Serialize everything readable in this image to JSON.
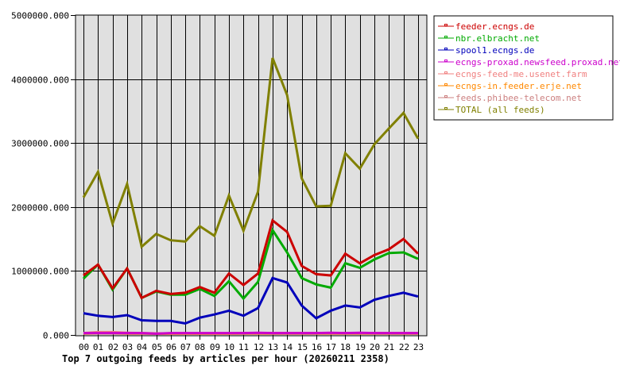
{
  "chart_data": {
    "type": "line",
    "title": "Top 7 outgoing feeds by articles per hour (20260211 2358)",
    "xlabel": "",
    "ylabel": "",
    "ylim": [
      0,
      5000000
    ],
    "yticks": [
      "0.000",
      "1000000.000",
      "2000000.000",
      "3000000.000",
      "4000000.000",
      "5000000.000"
    ],
    "grid": true,
    "legend_position": "right",
    "categories": [
      "00",
      "01",
      "02",
      "03",
      "04",
      "05",
      "06",
      "07",
      "08",
      "09",
      "10",
      "11",
      "12",
      "13",
      "14",
      "15",
      "16",
      "17",
      "18",
      "19",
      "20",
      "21",
      "22",
      "23"
    ],
    "series": [
      {
        "name": "feeder.ecngs.de",
        "color": "#cc0000",
        "values": [
          930000,
          1100000,
          730000,
          1040000,
          580000,
          690000,
          640000,
          660000,
          750000,
          660000,
          960000,
          780000,
          960000,
          1790000,
          1610000,
          1080000,
          950000,
          930000,
          1270000,
          1120000,
          1250000,
          1340000,
          1500000,
          1270000
        ]
      },
      {
        "name": "nbr.elbracht.net",
        "color": "#00aa00",
        "values": [
          880000,
          1100000,
          710000,
          1040000,
          580000,
          680000,
          630000,
          630000,
          720000,
          610000,
          840000,
          570000,
          830000,
          1640000,
          1290000,
          890000,
          790000,
          740000,
          1120000,
          1050000,
          1180000,
          1280000,
          1290000,
          1190000
        ]
      },
      {
        "name": "spool1.ecngs.de",
        "color": "#0000bb",
        "values": [
          340000,
          300000,
          280000,
          310000,
          230000,
          220000,
          220000,
          180000,
          270000,
          320000,
          380000,
          300000,
          420000,
          890000,
          820000,
          460000,
          260000,
          380000,
          460000,
          430000,
          550000,
          610000,
          660000,
          600000
        ]
      },
      {
        "name": "ecngs-proxad.newsfeed.proxad.net",
        "color": "#cc00cc",
        "values": [
          30000,
          30000,
          30000,
          30000,
          30000,
          20000,
          30000,
          30000,
          30000,
          30000,
          30000,
          30000,
          35000,
          30000,
          30000,
          30000,
          30000,
          35000,
          30000,
          35000,
          30000,
          30000,
          30000,
          30000
        ]
      },
      {
        "name": "ecngs-feed-me.usenet.farm",
        "color": "#f08080",
        "values": [
          30000,
          45000,
          45000,
          35000,
          30000,
          25000,
          25000,
          25000,
          25000,
          25000,
          25000,
          30000,
          30000,
          30000,
          30000,
          30000,
          30000,
          30000,
          30000,
          30000,
          30000,
          30000,
          30000,
          30000
        ]
      },
      {
        "name": "ecngs-in.feeder.erje.net",
        "color": "#ff8800",
        "values": [
          25000,
          30000,
          30000,
          25000,
          25000,
          20000,
          20000,
          20000,
          20000,
          20000,
          20000,
          25000,
          25000,
          25000,
          25000,
          25000,
          25000,
          25000,
          25000,
          25000,
          25000,
          25000,
          25000,
          25000
        ]
      },
      {
        "name": "feeds.phibee-telecom.net",
        "color": "#cc8080",
        "values": [
          20000,
          25000,
          25000,
          20000,
          20000,
          20000,
          20000,
          20000,
          20000,
          20000,
          20000,
          20000,
          20000,
          20000,
          20000,
          20000,
          20000,
          20000,
          20000,
          20000,
          20000,
          20000,
          20000,
          20000
        ]
      },
      {
        "name": "TOTAL (all feeds)",
        "color": "#808000",
        "values": [
          2150000,
          2550000,
          1740000,
          2360000,
          1380000,
          1580000,
          1480000,
          1460000,
          1700000,
          1550000,
          2180000,
          1630000,
          2240000,
          4330000,
          3750000,
          2450000,
          2010000,
          2020000,
          2840000,
          2600000,
          2980000,
          3230000,
          3470000,
          3070000
        ]
      }
    ]
  }
}
